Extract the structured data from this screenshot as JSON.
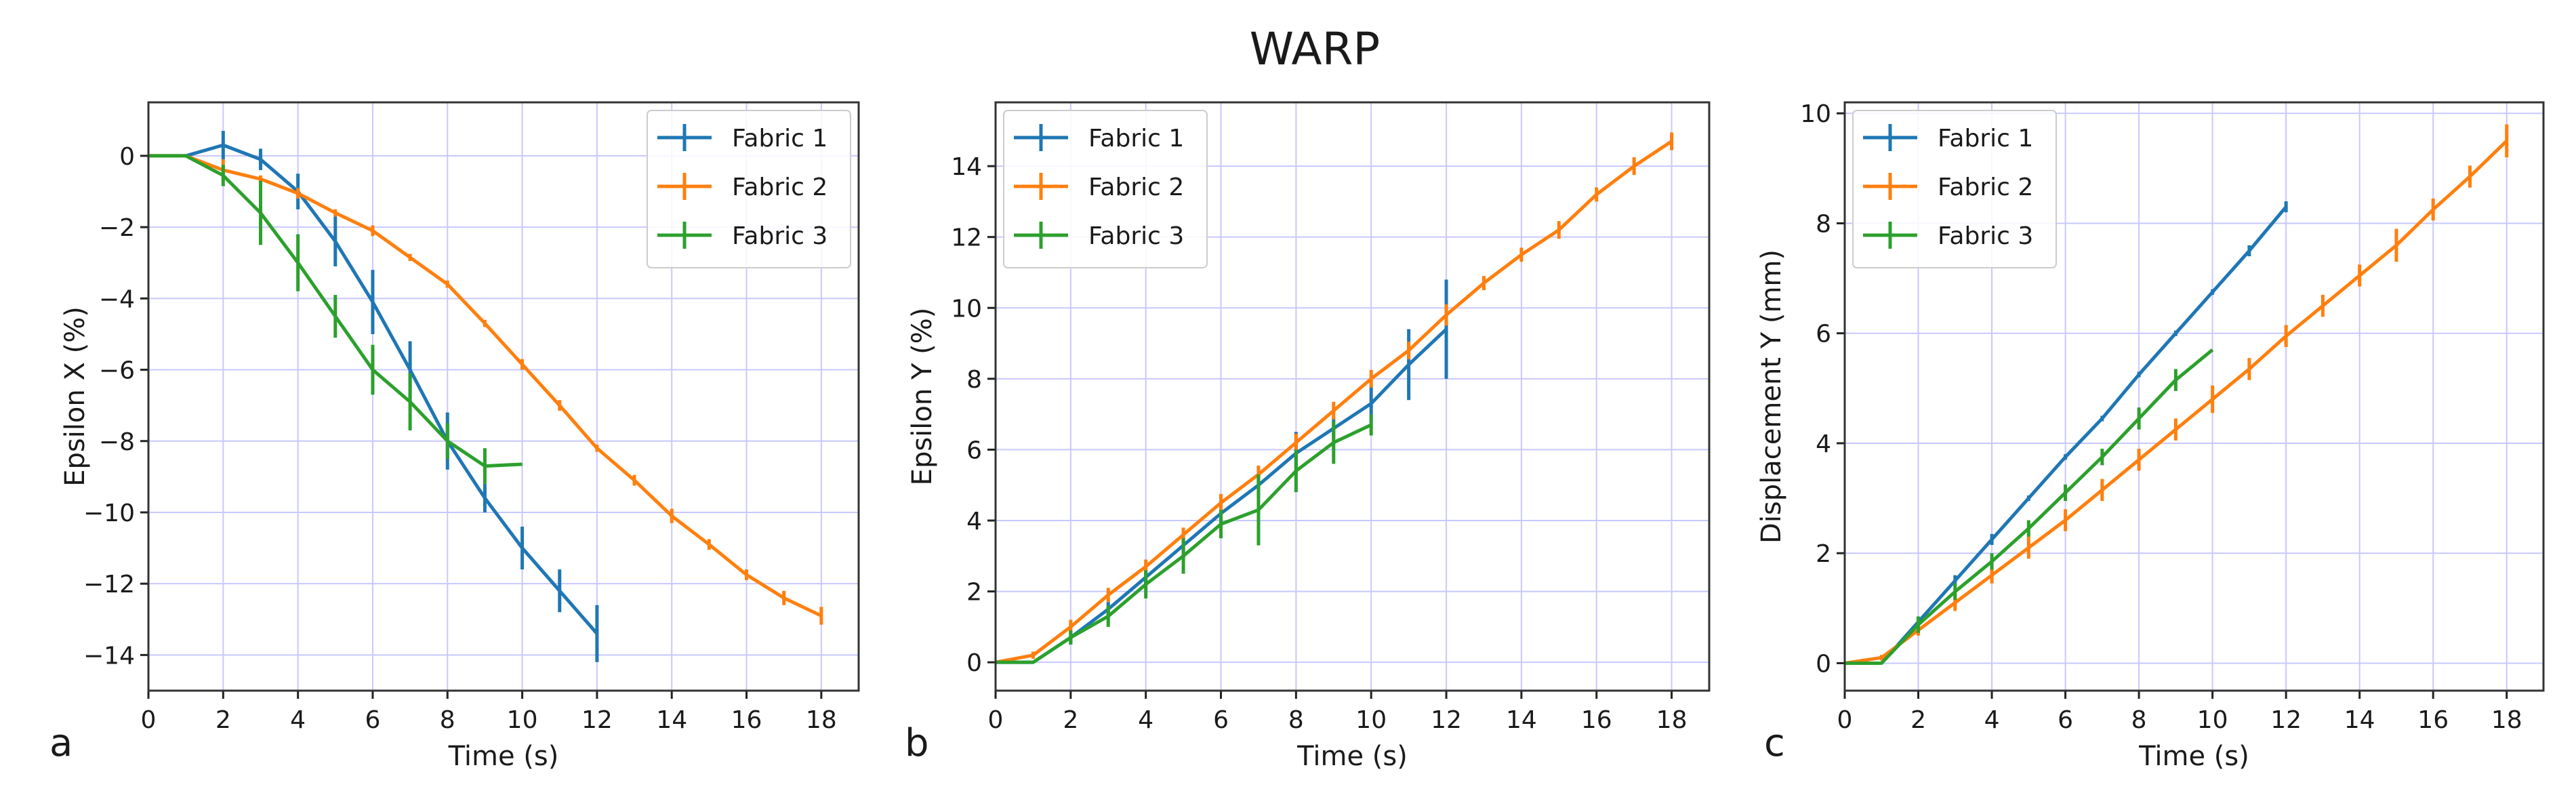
{
  "title": "WARP",
  "colors": {
    "Fabric 1": "#1f77b4",
    "Fabric 2": "#ff7f0e",
    "Fabric 3": "#2ca02c",
    "grid": "#c8c8ff"
  },
  "chart_data": [
    {
      "panel": "a",
      "type": "line",
      "title": "",
      "xlabel": "Time (s)",
      "ylabel": "Epsilon X (%)",
      "xlim": [
        0,
        19
      ],
      "ylim": [
        -15,
        1.5
      ],
      "xticks": [
        0,
        2,
        4,
        6,
        8,
        10,
        12,
        14,
        16,
        18
      ],
      "yticks": [
        0,
        -2,
        -4,
        -6,
        -8,
        -10,
        -12,
        -14
      ],
      "grid": true,
      "legend": "top-right",
      "series": [
        {
          "name": "Fabric 1",
          "x": [
            0,
            1,
            2,
            3,
            4,
            5,
            6,
            7,
            8,
            9,
            10,
            11,
            12
          ],
          "y": [
            0,
            0,
            0.3,
            -0.1,
            -1.0,
            -2.4,
            -4.1,
            -6.0,
            -8.0,
            -9.6,
            -11.0,
            -12.2,
            -13.4
          ],
          "err": [
            0,
            0,
            0.4,
            0.3,
            0.5,
            0.7,
            0.9,
            0.8,
            0.8,
            0.4,
            0.6,
            0.6,
            0.8
          ]
        },
        {
          "name": "Fabric 2",
          "x": [
            0,
            1,
            2,
            3,
            4,
            5,
            6,
            7,
            8,
            9,
            10,
            11,
            12,
            13,
            14,
            15,
            16,
            17,
            18
          ],
          "y": [
            0,
            0,
            -0.4,
            -0.65,
            -1.05,
            -1.6,
            -2.1,
            -2.85,
            -3.6,
            -4.7,
            -5.85,
            -7.0,
            -8.2,
            -9.1,
            -10.1,
            -10.9,
            -11.75,
            -12.4,
            -12.9
          ],
          "err": [
            0,
            0,
            0.3,
            0.1,
            0.15,
            0.1,
            0.15,
            0.1,
            0.1,
            0.1,
            0.15,
            0.15,
            0.1,
            0.15,
            0.2,
            0.15,
            0.15,
            0.2,
            0.25
          ]
        },
        {
          "name": "Fabric 3",
          "x": [
            0,
            1,
            2,
            3,
            4,
            5,
            6,
            7,
            8,
            9,
            10
          ],
          "y": [
            0,
            0,
            -0.55,
            -1.6,
            -3.0,
            -4.5,
            -6.0,
            -6.9,
            -8.0,
            -8.7,
            -8.65
          ],
          "err": [
            0,
            0,
            0.3,
            0.9,
            0.8,
            0.6,
            0.7,
            0.8,
            0.5,
            0.5,
            0
          ]
        }
      ]
    },
    {
      "panel": "b",
      "type": "line",
      "title": "",
      "xlabel": "Time (s)",
      "ylabel": "Epsilon Y (%)",
      "xlim": [
        0,
        19
      ],
      "ylim": [
        -0.8,
        15.8
      ],
      "xticks": [
        0,
        2,
        4,
        6,
        8,
        10,
        12,
        14,
        16,
        18
      ],
      "yticks": [
        0,
        2,
        4,
        6,
        8,
        10,
        12,
        14
      ],
      "grid": true,
      "legend": "top-left",
      "series": [
        {
          "name": "Fabric 1",
          "x": [
            0,
            1,
            2,
            3,
            4,
            5,
            6,
            7,
            8,
            9,
            10,
            11,
            12
          ],
          "y": [
            0,
            0,
            0.7,
            1.5,
            2.4,
            3.3,
            4.2,
            5.0,
            5.9,
            6.6,
            7.3,
            8.4,
            9.4
          ],
          "err": [
            0,
            0,
            0.2,
            0.2,
            0.2,
            0.2,
            0.2,
            0.3,
            0.6,
            0.3,
            0.5,
            1.0,
            1.4
          ]
        },
        {
          "name": "Fabric 2",
          "x": [
            0,
            1,
            2,
            3,
            4,
            5,
            6,
            7,
            8,
            9,
            10,
            11,
            12,
            13,
            14,
            15,
            16,
            17,
            18
          ],
          "y": [
            0,
            0.2,
            1.0,
            1.9,
            2.7,
            3.6,
            4.5,
            5.3,
            6.2,
            7.1,
            8.0,
            8.8,
            9.8,
            10.7,
            11.5,
            12.2,
            13.2,
            14.0,
            14.7
          ],
          "err": [
            0,
            0.1,
            0.2,
            0.2,
            0.2,
            0.2,
            0.25,
            0.25,
            0.25,
            0.25,
            0.25,
            0.25,
            0.3,
            0.2,
            0.2,
            0.25,
            0.2,
            0.25,
            0.25
          ]
        },
        {
          "name": "Fabric 3",
          "x": [
            0,
            1,
            2,
            3,
            4,
            5,
            6,
            7,
            8,
            9,
            10
          ],
          "y": [
            0,
            0,
            0.7,
            1.3,
            2.2,
            3.0,
            3.9,
            4.3,
            5.4,
            6.2,
            6.7
          ],
          "err": [
            0,
            0,
            0.2,
            0.3,
            0.4,
            0.5,
            0.4,
            1.0,
            0.6,
            0.6,
            0.3
          ]
        }
      ]
    },
    {
      "panel": "c",
      "type": "line",
      "title": "",
      "xlabel": "Time (s)",
      "ylabel": "Displacement Y (mm)",
      "xlim": [
        0,
        19
      ],
      "ylim": [
        -0.5,
        10.2
      ],
      "xticks": [
        0,
        2,
        4,
        6,
        8,
        10,
        12,
        14,
        16,
        18
      ],
      "yticks": [
        0,
        2,
        4,
        6,
        8,
        10
      ],
      "grid": true,
      "legend": "top-left",
      "series": [
        {
          "name": "Fabric 1",
          "x": [
            0,
            1,
            2,
            3,
            4,
            5,
            6,
            7,
            8,
            9,
            10,
            11,
            12
          ],
          "y": [
            0,
            0,
            0.75,
            1.5,
            2.25,
            3.0,
            3.75,
            4.45,
            5.25,
            6.0,
            6.75,
            7.5,
            8.3
          ],
          "err": [
            0,
            0,
            0.1,
            0.1,
            0.1,
            0.05,
            0.05,
            0.05,
            0.05,
            0.05,
            0.05,
            0.1,
            0.1
          ]
        },
        {
          "name": "Fabric 2",
          "x": [
            0,
            1,
            2,
            3,
            4,
            5,
            6,
            7,
            8,
            9,
            10,
            11,
            12,
            13,
            14,
            15,
            16,
            17,
            18
          ],
          "y": [
            0,
            0.1,
            0.6,
            1.1,
            1.6,
            2.1,
            2.6,
            3.15,
            3.7,
            4.25,
            4.8,
            5.35,
            5.95,
            6.5,
            7.05,
            7.6,
            8.25,
            8.85,
            9.5
          ],
          "err": [
            0,
            0.05,
            0.1,
            0.15,
            0.15,
            0.2,
            0.2,
            0.2,
            0.2,
            0.2,
            0.25,
            0.2,
            0.2,
            0.2,
            0.2,
            0.3,
            0.2,
            0.2,
            0.3
          ]
        },
        {
          "name": "Fabric 3",
          "x": [
            0,
            1,
            2,
            3,
            4,
            5,
            6,
            7,
            8,
            9,
            10
          ],
          "y": [
            0,
            0,
            0.7,
            1.3,
            1.85,
            2.45,
            3.1,
            3.75,
            4.45,
            5.15,
            5.7
          ],
          "err": [
            0,
            0,
            0.15,
            0.15,
            0.15,
            0.15,
            0.15,
            0.15,
            0.2,
            0.2,
            0
          ]
        }
      ]
    }
  ]
}
